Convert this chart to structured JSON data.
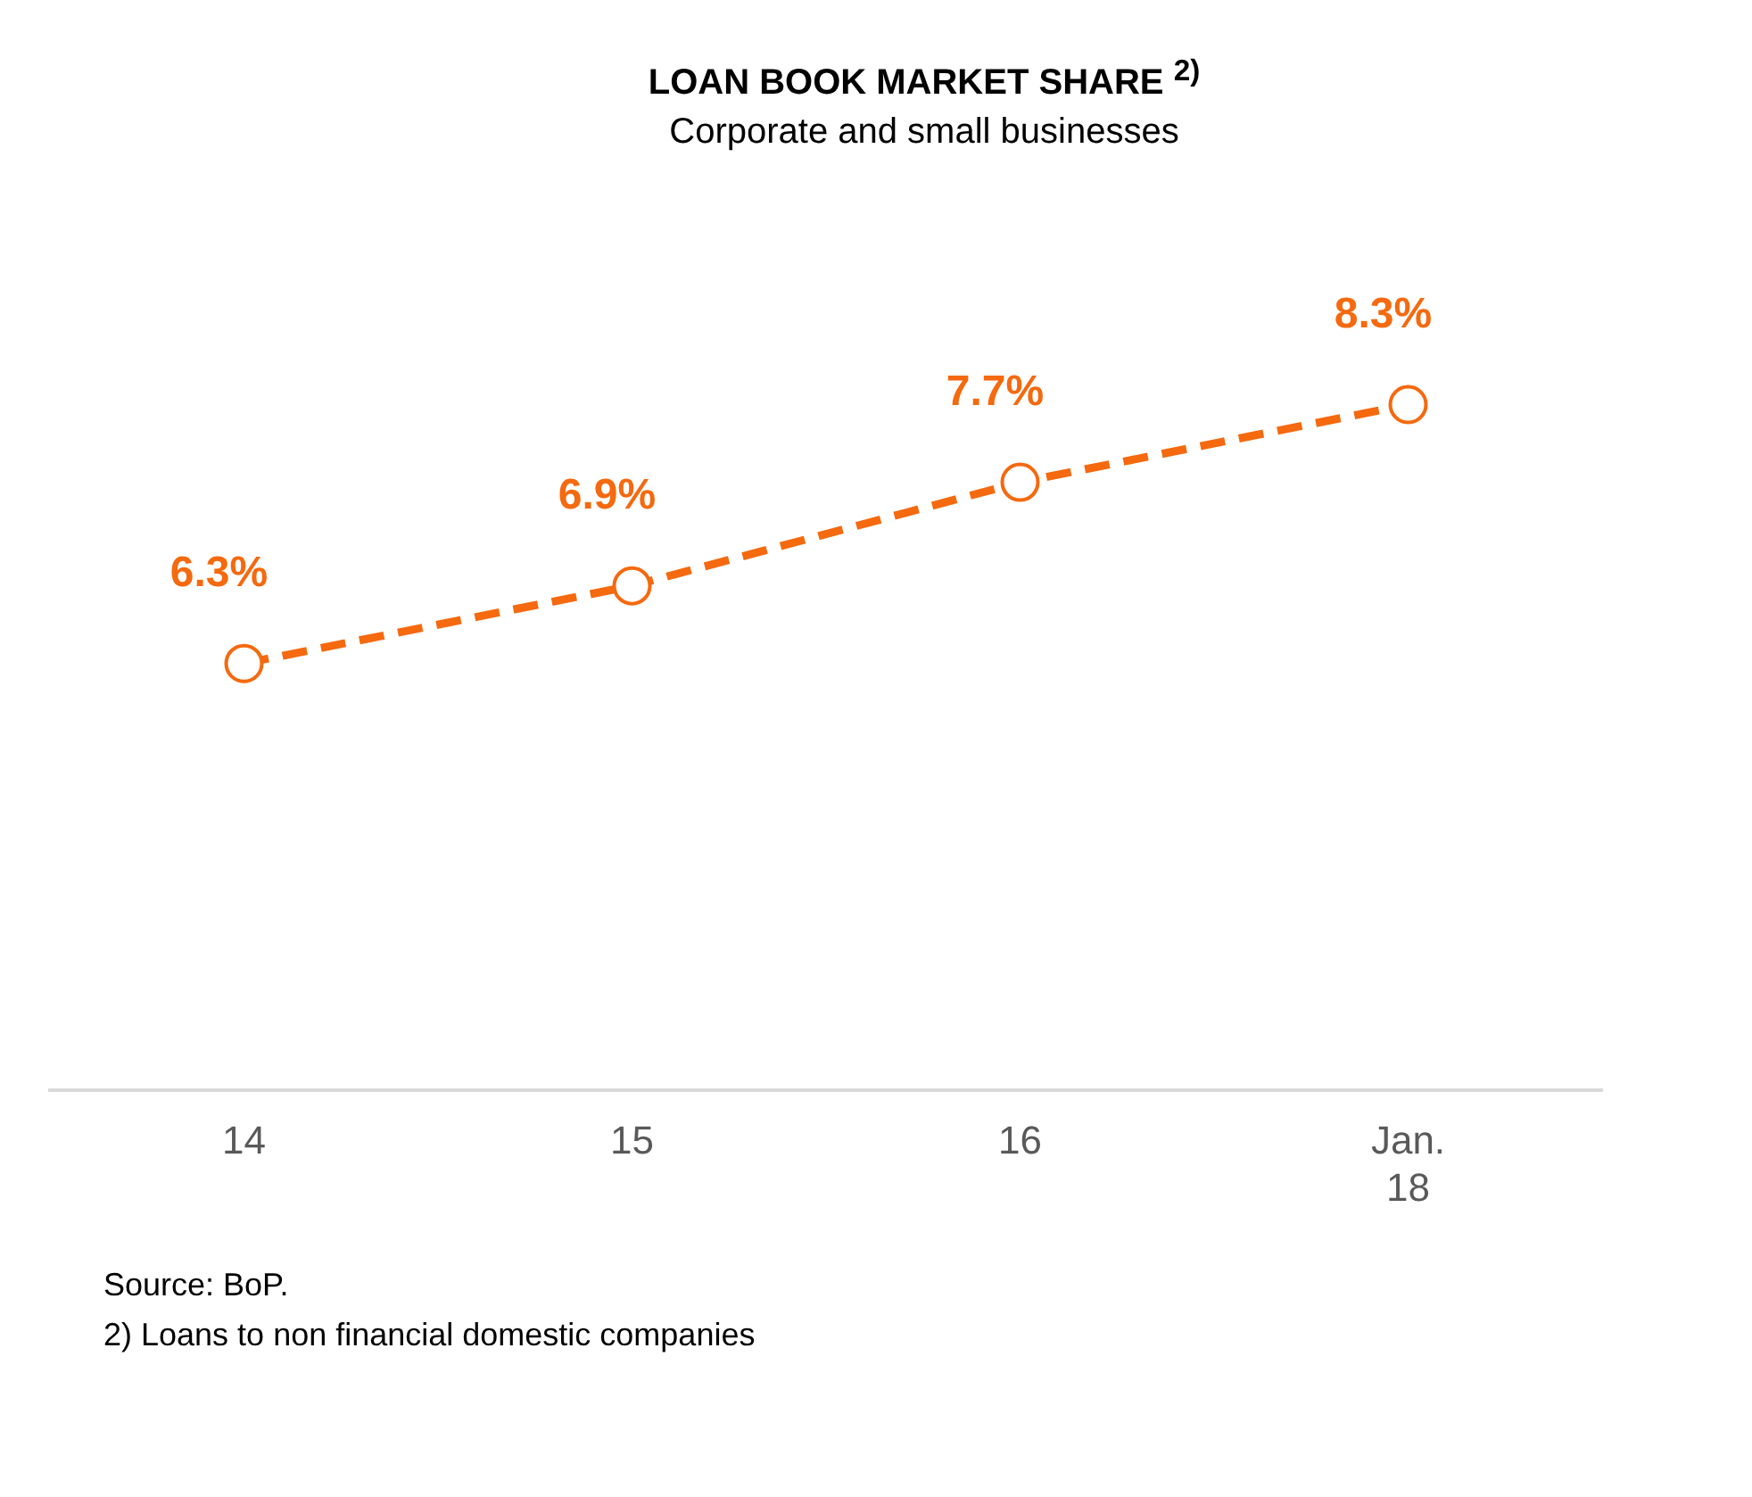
{
  "chart_data": {
    "type": "line",
    "title": "LOAN BOOK MARKET SHARE $^{2)}$",
    "subtitle": "Corporate and small businesses",
    "categories": [
      "14",
      "15",
      "16",
      "Jan. 18"
    ],
    "series": [
      {
        "color": "#f5690f",
        "values": [
          6.3,
          6.9,
          7.7,
          8.3
        ],
        "value_labels": [
          "6.3%",
          "6.9%",
          "7.7%",
          "8.3%"
        ]
      }
    ],
    "tick_labels": "x",
    "grid": false,
    "legend": false,
    "marker": "circle",
    "line_style": "dashed",
    "annotations": [
      "Source: BoP.",
      "2) Loans to non financial domestic companies"
    ]
  }
}
